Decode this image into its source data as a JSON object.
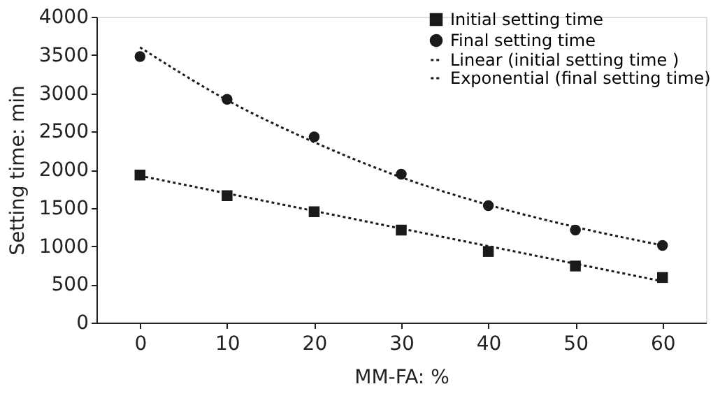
{
  "chart_data": {
    "type": "scatter",
    "xlabel": "MM-FA: %",
    "ylabel": "Setting time: min",
    "x": [
      0,
      10,
      20,
      30,
      40,
      50,
      60
    ],
    "series": [
      {
        "name": "Initial setting time",
        "marker": "square",
        "color": "#1a1a1a",
        "values": [
          1930,
          1660,
          1450,
          1210,
          930,
          740,
          590
        ]
      },
      {
        "name": "Final setting time",
        "marker": "circle",
        "color": "#1a1a1a",
        "values": [
          3480,
          2920,
          2430,
          1940,
          1530,
          1210,
          1010
        ]
      },
      {
        "name": "Linear (initial setting time )",
        "type": "line",
        "line_style": "dotted",
        "color": "#1a1a1a",
        "x": [
          0,
          60
        ],
        "values": [
          1920,
          540
        ]
      },
      {
        "name": "Exponential (final setting time)",
        "type": "line",
        "line_style": "dotted",
        "color": "#1a1a1a",
        "x": [
          0,
          10,
          20,
          30,
          40,
          50,
          60
        ],
        "values": [
          3600,
          2910,
          2360,
          1900,
          1540,
          1250,
          1010
        ]
      }
    ],
    "xlim": [
      -5,
      65
    ],
    "xticks": [
      0,
      10,
      20,
      30,
      40,
      50,
      60
    ],
    "ylim": [
      0,
      4000
    ],
    "yticks": [
      0,
      500,
      1000,
      1500,
      2000,
      2500,
      3000,
      3500,
      4000
    ],
    "grid": false,
    "legend": "top right"
  }
}
